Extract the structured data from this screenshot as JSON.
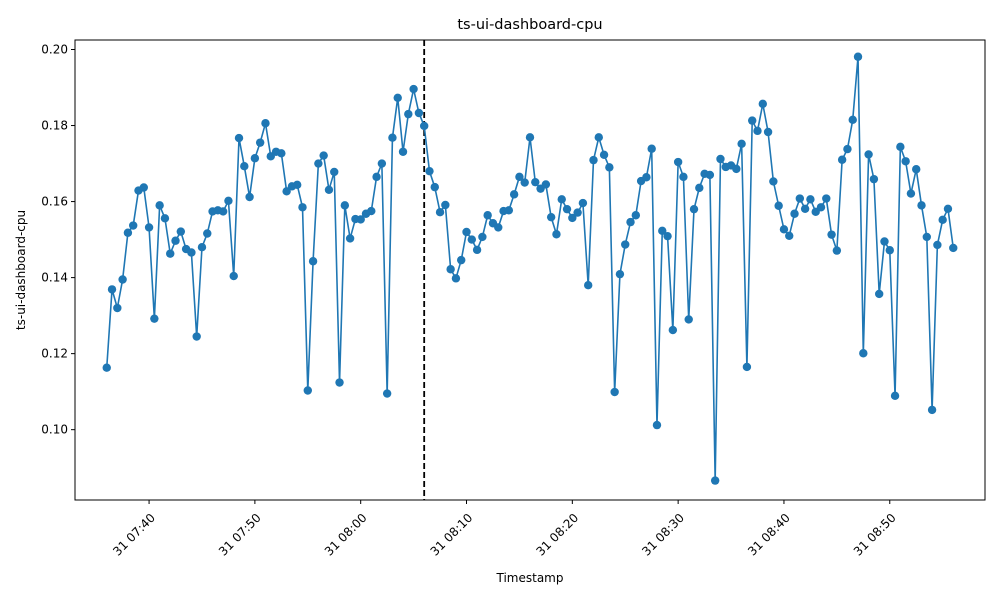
{
  "chart_data": {
    "type": "line",
    "title": "ts-ui-dashboard-cpu",
    "xlabel": "Timestamp",
    "ylabel": "ts-ui-dashboard-cpu",
    "x_start": "07:36",
    "x_step_minutes": 0.5,
    "x_tick_labels": [
      "31 07:40",
      "31 07:50",
      "31 08:00",
      "31 08:10",
      "31 08:20",
      "31 08:30",
      "31 08:40",
      "31 08:50"
    ],
    "y_tick_labels": [
      "0.10",
      "0.12",
      "0.14",
      "0.16",
      "0.18",
      "0.20"
    ],
    "ylim": [
      0.0815,
      0.2025
    ],
    "xlim_minutes": [
      "07:33",
      "08:59"
    ],
    "vertical_marker": {
      "x": "08:06",
      "style": "dashed",
      "color": "#000000"
    },
    "marker": "circle",
    "grid": false,
    "legend": "none",
    "series": [
      {
        "color": "#1f77b4",
        "values": [
          0.1163,
          0.1369,
          0.132,
          0.1395,
          0.1518,
          0.1537,
          0.1629,
          0.1637,
          0.1532,
          0.1292,
          0.159,
          0.1556,
          0.1463,
          0.1497,
          0.1521,
          0.1475,
          0.1466,
          0.1245,
          0.148,
          0.1516,
          0.1574,
          0.1577,
          0.1574,
          0.1602,
          0.1404,
          0.1767,
          0.1693,
          0.1612,
          0.1714,
          0.1755,
          0.1806,
          0.1719,
          0.1731,
          0.1727,
          0.1627,
          0.164,
          0.1644,
          0.1585,
          0.1103,
          0.1443,
          0.17,
          0.1721,
          0.1631,
          0.1678,
          0.1124,
          0.159,
          0.1503,
          0.1554,
          0.1553,
          0.1568,
          0.1575,
          0.1665,
          0.17,
          0.1095,
          0.1768,
          0.1873,
          0.1731,
          0.183,
          0.1896,
          0.1833,
          0.1799,
          0.168,
          0.1638,
          0.1572,
          0.1591,
          0.1422,
          0.1398,
          0.1446,
          0.152,
          0.15,
          0.1473,
          0.1507,
          0.1564,
          0.1543,
          0.1532,
          0.1575,
          0.1577,
          0.1619,
          0.1665,
          0.165,
          0.1769,
          0.1651,
          0.1634,
          0.1645,
          0.1559,
          0.1514,
          0.1606,
          0.158,
          0.1557,
          0.1571,
          0.1596,
          0.138,
          0.1709,
          0.1769,
          0.1723,
          0.169,
          0.1099,
          0.1409,
          0.1487,
          0.1546,
          0.1564,
          0.1654,
          0.1664,
          0.1739,
          0.1012,
          0.1523,
          0.1509,
          0.1262,
          0.1704,
          0.1665,
          0.129,
          0.158,
          0.1636,
          0.1673,
          0.167,
          0.0866,
          0.1712,
          0.1691,
          0.1695,
          0.1686,
          0.1752,
          0.1165,
          0.1813,
          0.1786,
          0.1857,
          0.1783,
          0.1653,
          0.1589,
          0.1527,
          0.151,
          0.1568,
          0.1608,
          0.1581,
          0.1606,
          0.1573,
          0.1585,
          0.1608,
          0.1513,
          0.1471,
          0.171,
          0.1738,
          0.1815,
          0.1981,
          0.1201,
          0.1724,
          0.1659,
          0.1357,
          0.1495,
          0.1472,
          0.1089,
          0.1744,
          0.1706,
          0.1621,
          0.1685,
          0.159,
          0.1507,
          0.1052,
          0.1486,
          0.1552,
          0.1581,
          0.1478
        ]
      }
    ]
  }
}
